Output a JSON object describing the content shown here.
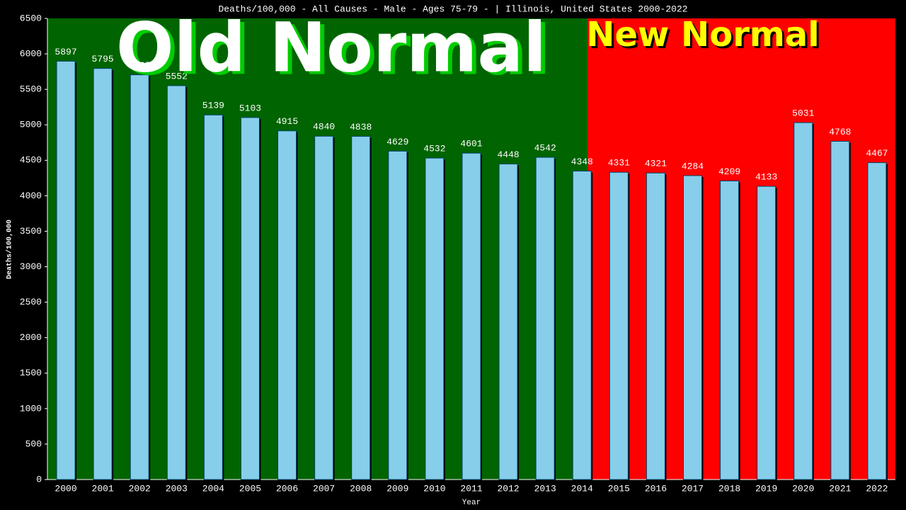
{
  "chart_data": {
    "type": "bar",
    "title": "Deaths/100,000 - All Causes - Male - Ages 75-79 -  | Illinois, United States 2000-2022",
    "x_label": "Year",
    "y_label": "Deaths/100,000",
    "annotations": [
      "Old Normal",
      "New Normal"
    ],
    "categories": [
      "2000",
      "2001",
      "2002",
      "2003",
      "2004",
      "2005",
      "2006",
      "2007",
      "2008",
      "2009",
      "2010",
      "2011",
      "2012",
      "2013",
      "2014",
      "2015",
      "2016",
      "2017",
      "2018",
      "2019",
      "2020",
      "2021",
      "2022"
    ],
    "values": [
      5897,
      5795,
      5705,
      5552,
      5139,
      5103,
      4915,
      4840,
      4838,
      4629,
      4532,
      4601,
      4448,
      4542,
      4348,
      4331,
      4321,
      4284,
      4209,
      4133,
      5031,
      4768,
      4467
    ],
    "color": "#87ceeb",
    "ylim": [
      0,
      6500
    ],
    "yticks": [
      0,
      500,
      1000,
      1500,
      2000,
      2500,
      3000,
      3500,
      4000,
      4500,
      5000,
      5500,
      6000,
      6500
    ]
  }
}
